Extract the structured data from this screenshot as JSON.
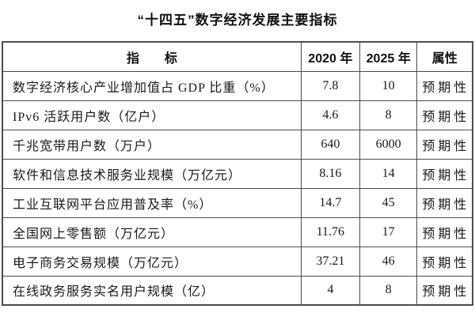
{
  "page_title": "“十四五”数字经济发展主要指标",
  "colors": {
    "background": "#ffffff",
    "text": "#111111",
    "border": "#4d4d4d"
  },
  "table": {
    "headers": {
      "indicator": "指　　标",
      "y2020": "2020 年",
      "y2025": "2025 年",
      "attribute": "属性"
    },
    "rows": [
      {
        "indicator": "数字经济核心产业增加值占 GDP 比重（%）",
        "y2020": "7.8",
        "y2025": "10",
        "attribute": "预期性"
      },
      {
        "indicator": "IPv6 活跃用户数（亿户）",
        "y2020": "4.6",
        "y2025": "8",
        "attribute": "预期性"
      },
      {
        "indicator": "千兆宽带用户数（万户）",
        "y2020": "640",
        "y2025": "6000",
        "attribute": "预期性"
      },
      {
        "indicator": "软件和信息技术服务业规模（万亿元）",
        "y2020": "8.16",
        "y2025": "14",
        "attribute": "预期性"
      },
      {
        "indicator": "工业互联网平台应用普及率（%）",
        "y2020": "14.7",
        "y2025": "45",
        "attribute": "预期性"
      },
      {
        "indicator": "全国网上零售额（万亿元）",
        "y2020": "11.76",
        "y2025": "17",
        "attribute": "预期性"
      },
      {
        "indicator": "电子商务交易规模（万亿元）",
        "y2020": "37.21",
        "y2025": "46",
        "attribute": "预期性"
      },
      {
        "indicator": "在线政务服务实名用户规模（亿）",
        "y2020": "4",
        "y2025": "8",
        "attribute": "预期性"
      }
    ]
  },
  "chart_data": {
    "type": "table",
    "title": "“十四五”数字经济发展主要指标",
    "columns": [
      "指标",
      "2020年",
      "2025年",
      "属性"
    ],
    "rows": [
      [
        "数字经济核心产业增加值占GDP比重（%）",
        7.8,
        10,
        "预期性"
      ],
      [
        "IPv6活跃用户数（亿户）",
        4.6,
        8,
        "预期性"
      ],
      [
        "千兆宽带用户数（万户）",
        640,
        6000,
        "预期性"
      ],
      [
        "软件和信息技术服务业规模（万亿元）",
        8.16,
        14,
        "预期性"
      ],
      [
        "工业互联网平台应用普及率（%）",
        14.7,
        45,
        "预期性"
      ],
      [
        "全国网上零售额（万亿元）",
        11.76,
        17,
        "预期性"
      ],
      [
        "电子商务交易规模（万亿元）",
        37.21,
        46,
        "预期性"
      ],
      [
        "在线政务服务实名用户规模（亿）",
        4,
        8,
        "预期性"
      ]
    ]
  }
}
